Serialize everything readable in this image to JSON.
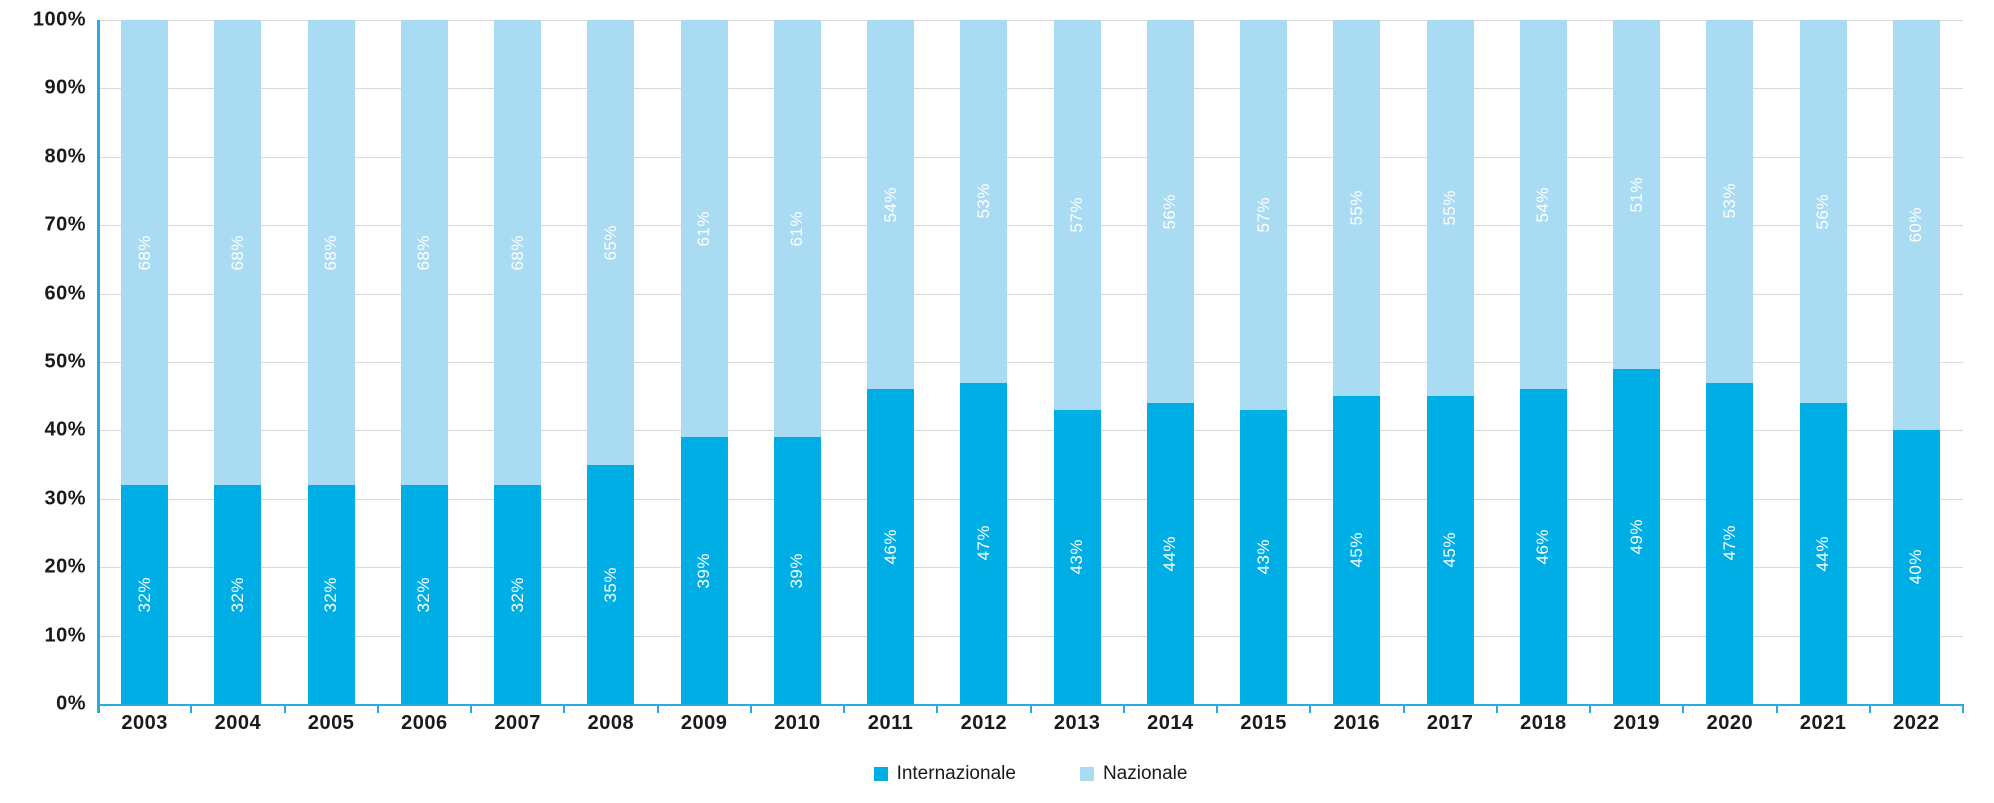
{
  "chart_data": {
    "type": "bar",
    "variant": "stacked-100-percent-column",
    "title": "",
    "xlabel": "",
    "ylabel": "",
    "categories": [
      "2003",
      "2004",
      "2005",
      "2006",
      "2007",
      "2008",
      "2009",
      "2010",
      "2011",
      "2012",
      "2013",
      "2014",
      "2015",
      "2016",
      "2017",
      "2018",
      "2019",
      "2020",
      "2021",
      "2022"
    ],
    "series": [
      {
        "name": "Internazionale",
        "color": "#00AEE6",
        "values": [
          32,
          32,
          32,
          32,
          32,
          35,
          39,
          39,
          46,
          47,
          43,
          44,
          43,
          45,
          45,
          46,
          49,
          47,
          44,
          40
        ]
      },
      {
        "name": "Nazionale",
        "color": "#A9DBF2",
        "values": [
          68,
          68,
          68,
          68,
          68,
          65,
          61,
          61,
          54,
          53,
          57,
          56,
          57,
          55,
          55,
          54,
          51,
          53,
          56,
          60
        ]
      }
    ],
    "data_label_format": "percent",
    "data_label_color": "#FFFFFF",
    "y_axis": {
      "min": 0,
      "max": 100,
      "ticks": [
        "0%",
        "10%",
        "20%",
        "30%",
        "40%",
        "50%",
        "60%",
        "70%",
        "80%",
        "90%",
        "100%"
      ],
      "grid": true,
      "gridline_color": "#D9D9D9"
    },
    "axis_color": "#29ABE2",
    "legend": {
      "position": "bottom",
      "items": [
        "Internazionale",
        "Nazionale"
      ]
    }
  }
}
